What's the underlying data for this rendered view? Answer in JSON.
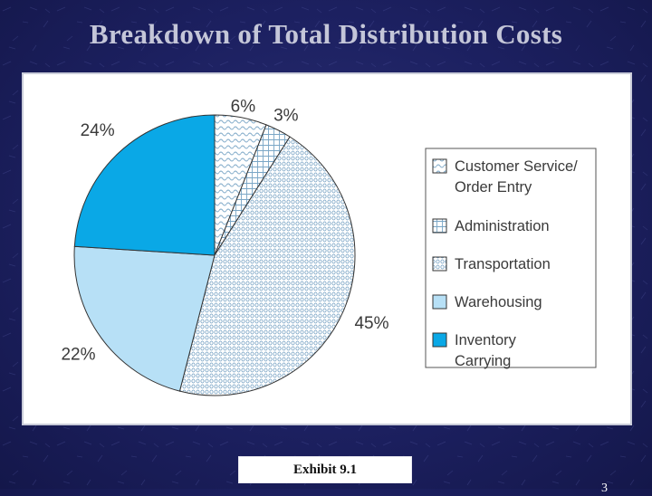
{
  "slide": {
    "title": "Breakdown of Total Distribution Costs",
    "exhibit_label": "Exhibit 9.1",
    "page_number": "3"
  },
  "chart_data": {
    "type": "pie",
    "title": "",
    "legend_position": "right",
    "slices": [
      {
        "name": "Customer Service/ Order Entry",
        "legend_lines": [
          "Customer Service/",
          "Order Entry"
        ],
        "value": 6,
        "label": "6%",
        "fill": "#ffffff",
        "pattern": "wave",
        "pattern_color": "#7aa6c6"
      },
      {
        "name": "Administration",
        "legend_lines": [
          "Administration"
        ],
        "value": 3,
        "label": "3%",
        "fill": "#ffffff",
        "pattern": "grid",
        "pattern_color": "#7aa6c6"
      },
      {
        "name": "Transportation",
        "legend_lines": [
          "Transportation"
        ],
        "value": 45,
        "label": "45%",
        "fill": "#ffffff",
        "pattern": "circles",
        "pattern_color": "#6f9dc0"
      },
      {
        "name": "Warehousing",
        "legend_lines": [
          "Warehousing"
        ],
        "value": 22,
        "label": "22%",
        "fill": "#b7e0f6",
        "pattern": "none",
        "pattern_color": ""
      },
      {
        "name": "Inventory Carrying",
        "legend_lines": [
          "Inventory",
          "Carrying"
        ],
        "value": 24,
        "label": "24%",
        "fill": "#0aa8e6",
        "pattern": "none",
        "pattern_color": ""
      }
    ]
  }
}
